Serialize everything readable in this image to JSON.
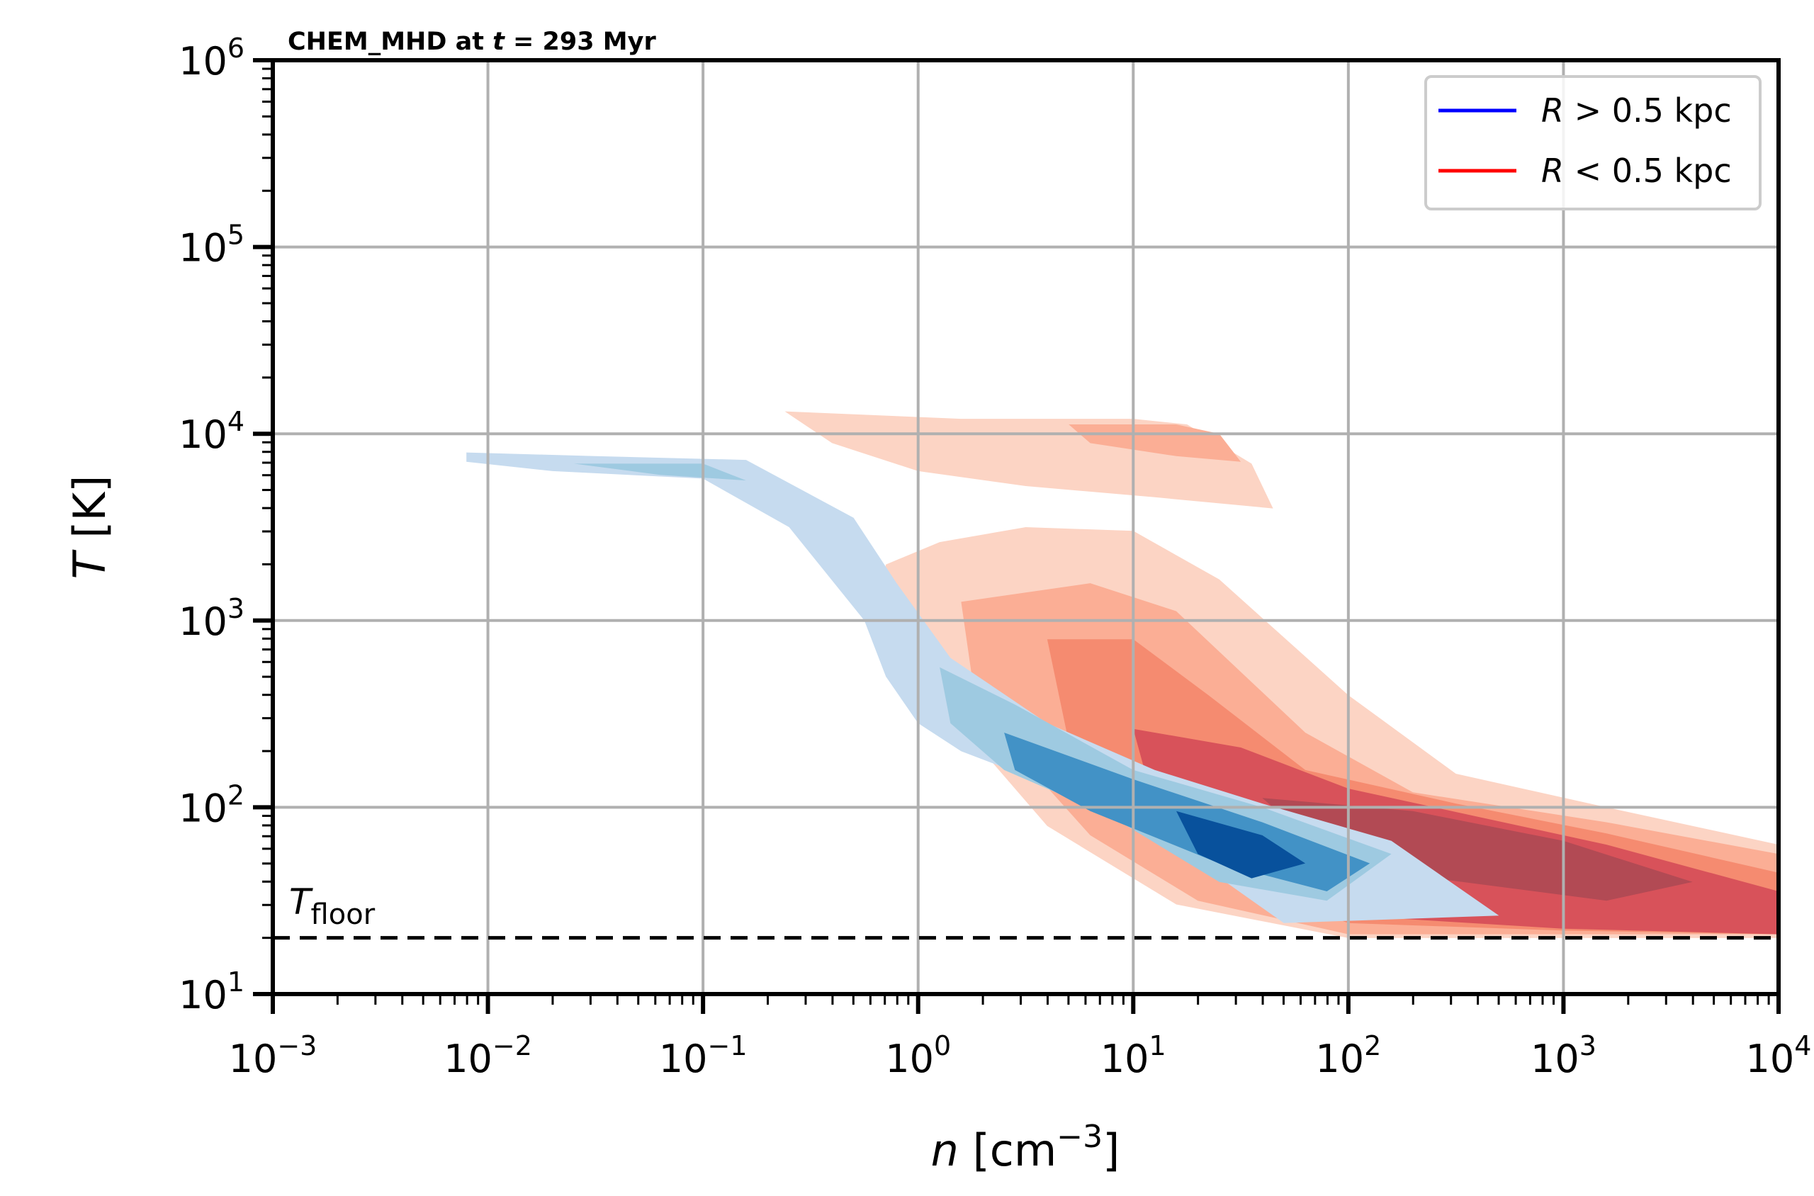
{
  "chart_data": {
    "type": "contour",
    "title": {
      "text": "CHEM_MHD at",
      "var": "t",
      "rest": " = 293 Myr"
    },
    "xlabel": {
      "var": "n",
      "unit_base": " [cm",
      "unit_exp": "−3",
      "unit_close": "]"
    },
    "ylabel": {
      "var": "T",
      "unit": " [K]"
    },
    "x_scale": "log",
    "y_scale": "log",
    "xlim_log10": [
      -3,
      4
    ],
    "ylim_log10": [
      1,
      6
    ],
    "x_ticks": [
      {
        "base": "10",
        "exp": "−3",
        "value_log10": -3
      },
      {
        "base": "10",
        "exp": "−2",
        "value_log10": -2
      },
      {
        "base": "10",
        "exp": "−1",
        "value_log10": -1
      },
      {
        "base": "10",
        "exp": "0",
        "value_log10": 0
      },
      {
        "base": "10",
        "exp": "1",
        "value_log10": 1
      },
      {
        "base": "10",
        "exp": "2",
        "value_log10": 2
      },
      {
        "base": "10",
        "exp": "3",
        "value_log10": 3
      },
      {
        "base": "10",
        "exp": "4",
        "value_log10": 4
      }
    ],
    "y_ticks": [
      {
        "base": "10",
        "exp": "1",
        "value_log10": 1
      },
      {
        "base": "10",
        "exp": "2",
        "value_log10": 2
      },
      {
        "base": "10",
        "exp": "3",
        "value_log10": 3
      },
      {
        "base": "10",
        "exp": "4",
        "value_log10": 4
      },
      {
        "base": "10",
        "exp": "5",
        "value_log10": 5
      },
      {
        "base": "10",
        "exp": "6",
        "value_log10": 6
      }
    ],
    "grid": true,
    "legend_position": "top-right",
    "legend": [
      {
        "var": "R",
        "text": " > 0.5 kpc",
        "color": "#0000ff"
      },
      {
        "var": "R",
        "text": " < 0.5 kpc",
        "color": "#ff0000"
      }
    ],
    "floor_line": {
      "label_base": "T",
      "label_sub": "floor",
      "value": 20,
      "style": "dashed"
    },
    "series": [
      {
        "colormap": "reds",
        "levels": [
          {
            "color": "#fcd4c4",
            "points": [
              [
                -0.62,
                4.12
              ],
              [
                0.2,
                4.08
              ],
              [
                1.0,
                4.08
              ],
              [
                1.25,
                4.05
              ],
              [
                1.55,
                3.84
              ],
              [
                1.65,
                3.6
              ],
              [
                1.1,
                3.66
              ],
              [
                0.5,
                3.72
              ],
              [
                0.0,
                3.8
              ],
              [
                -0.4,
                3.95
              ]
            ]
          },
          {
            "color": "#fcd4c4",
            "points": [
              [
                -0.15,
                3.3
              ],
              [
                0.1,
                3.42
              ],
              [
                0.5,
                3.5
              ],
              [
                1.0,
                3.48
              ],
              [
                1.4,
                3.22
              ],
              [
                2.0,
                2.6
              ],
              [
                2.5,
                2.18
              ],
              [
                3.2,
                2.0
              ],
              [
                4.0,
                1.8
              ],
              [
                4.0,
                1.3
              ],
              [
                3.0,
                1.3
              ],
              [
                2.0,
                1.3
              ],
              [
                1.2,
                1.48
              ],
              [
                0.6,
                1.9
              ],
              [
                0.3,
                2.3
              ],
              [
                0.0,
                2.6
              ],
              [
                -0.2,
                2.9
              ]
            ]
          },
          {
            "color": "#fbae95",
            "points": [
              [
                0.7,
                4.05
              ],
              [
                1.2,
                4.05
              ],
              [
                1.4,
                4.0
              ],
              [
                1.5,
                3.85
              ],
              [
                1.2,
                3.88
              ],
              [
                0.8,
                3.95
              ]
            ]
          },
          {
            "color": "#fbae95",
            "points": [
              [
                0.2,
                3.1
              ],
              [
                0.8,
                3.2
              ],
              [
                1.2,
                3.05
              ],
              [
                1.8,
                2.4
              ],
              [
                2.3,
                2.08
              ],
              [
                3.2,
                1.92
              ],
              [
                4.0,
                1.75
              ],
              [
                4.0,
                1.32
              ],
              [
                3.0,
                1.32
              ],
              [
                2.0,
                1.32
              ],
              [
                1.3,
                1.5
              ],
              [
                0.8,
                1.85
              ],
              [
                0.45,
                2.3
              ],
              [
                0.25,
                2.7
              ]
            ]
          },
          {
            "color": "#f58b70",
            "points": [
              [
                0.6,
                2.9
              ],
              [
                1.0,
                2.9
              ],
              [
                1.35,
                2.6
              ],
              [
                1.8,
                2.2
              ],
              [
                2.5,
                2.02
              ],
              [
                3.2,
                1.86
              ],
              [
                4.0,
                1.65
              ],
              [
                4.0,
                1.32
              ],
              [
                3.0,
                1.34
              ],
              [
                2.0,
                1.38
              ],
              [
                1.4,
                1.62
              ],
              [
                1.0,
                2.0
              ],
              [
                0.7,
                2.35
              ]
            ]
          },
          {
            "color": "#d8525a",
            "points": [
              [
                1.0,
                2.42
              ],
              [
                1.5,
                2.32
              ],
              [
                2.0,
                2.1
              ],
              [
                2.6,
                1.95
              ],
              [
                3.2,
                1.8
              ],
              [
                4.0,
                1.55
              ],
              [
                4.0,
                1.32
              ],
              [
                3.0,
                1.35
              ],
              [
                2.0,
                1.42
              ],
              [
                1.4,
                1.7
              ],
              [
                1.1,
                2.0
              ]
            ]
          },
          {
            "color": "#b24a54",
            "points": [
              [
                1.6,
                2.05
              ],
              [
                2.3,
                1.98
              ],
              [
                3.0,
                1.82
              ],
              [
                3.6,
                1.6
              ],
              [
                3.2,
                1.5
              ],
              [
                2.4,
                1.62
              ],
              [
                1.9,
                1.75
              ]
            ]
          }
        ]
      },
      {
        "colormap": "blues",
        "levels": [
          {
            "color": "#c6dbef",
            "points": [
              [
                -2.1,
                3.9
              ],
              [
                -1.5,
                3.88
              ],
              [
                -0.8,
                3.86
              ],
              [
                -0.3,
                3.55
              ],
              [
                -0.1,
                3.2
              ],
              [
                0.15,
                2.8
              ],
              [
                0.6,
                2.45
              ],
              [
                1.1,
                2.2
              ],
              [
                1.6,
                2.02
              ],
              [
                2.2,
                1.82
              ],
              [
                2.7,
                1.42
              ],
              [
                1.7,
                1.38
              ],
              [
                1.0,
                1.95
              ],
              [
                0.2,
                2.3
              ],
              [
                0.0,
                2.45
              ],
              [
                -0.15,
                2.7
              ],
              [
                -0.25,
                3.0
              ],
              [
                -0.6,
                3.5
              ],
              [
                -1.0,
                3.76
              ],
              [
                -1.7,
                3.8
              ],
              [
                -2.1,
                3.85
              ]
            ]
          },
          {
            "color": "#9ecae1",
            "points": [
              [
                -1.6,
                3.84
              ],
              [
                -1.0,
                3.84
              ],
              [
                -0.8,
                3.75
              ],
              [
                -1.2,
                3.78
              ]
            ]
          },
          {
            "color": "#9ecae1",
            "points": [
              [
                0.1,
                2.75
              ],
              [
                0.45,
                2.55
              ],
              [
                1.0,
                2.2
              ],
              [
                1.6,
                2.0
              ],
              [
                2.2,
                1.75
              ],
              [
                1.9,
                1.5
              ],
              [
                1.4,
                1.6
              ],
              [
                0.9,
                1.95
              ],
              [
                0.4,
                2.2
              ],
              [
                0.15,
                2.45
              ]
            ]
          },
          {
            "color": "#4292c6",
            "points": [
              [
                0.4,
                2.4
              ],
              [
                1.0,
                2.15
              ],
              [
                1.6,
                1.92
              ],
              [
                2.1,
                1.7
              ],
              [
                1.9,
                1.55
              ],
              [
                1.4,
                1.7
              ],
              [
                0.8,
                1.98
              ],
              [
                0.45,
                2.2
              ]
            ]
          },
          {
            "color": "#08519c",
            "points": [
              [
                1.2,
                1.98
              ],
              [
                1.6,
                1.85
              ],
              [
                1.8,
                1.7
              ],
              [
                1.55,
                1.62
              ],
              [
                1.3,
                1.75
              ]
            ]
          }
        ]
      }
    ]
  }
}
